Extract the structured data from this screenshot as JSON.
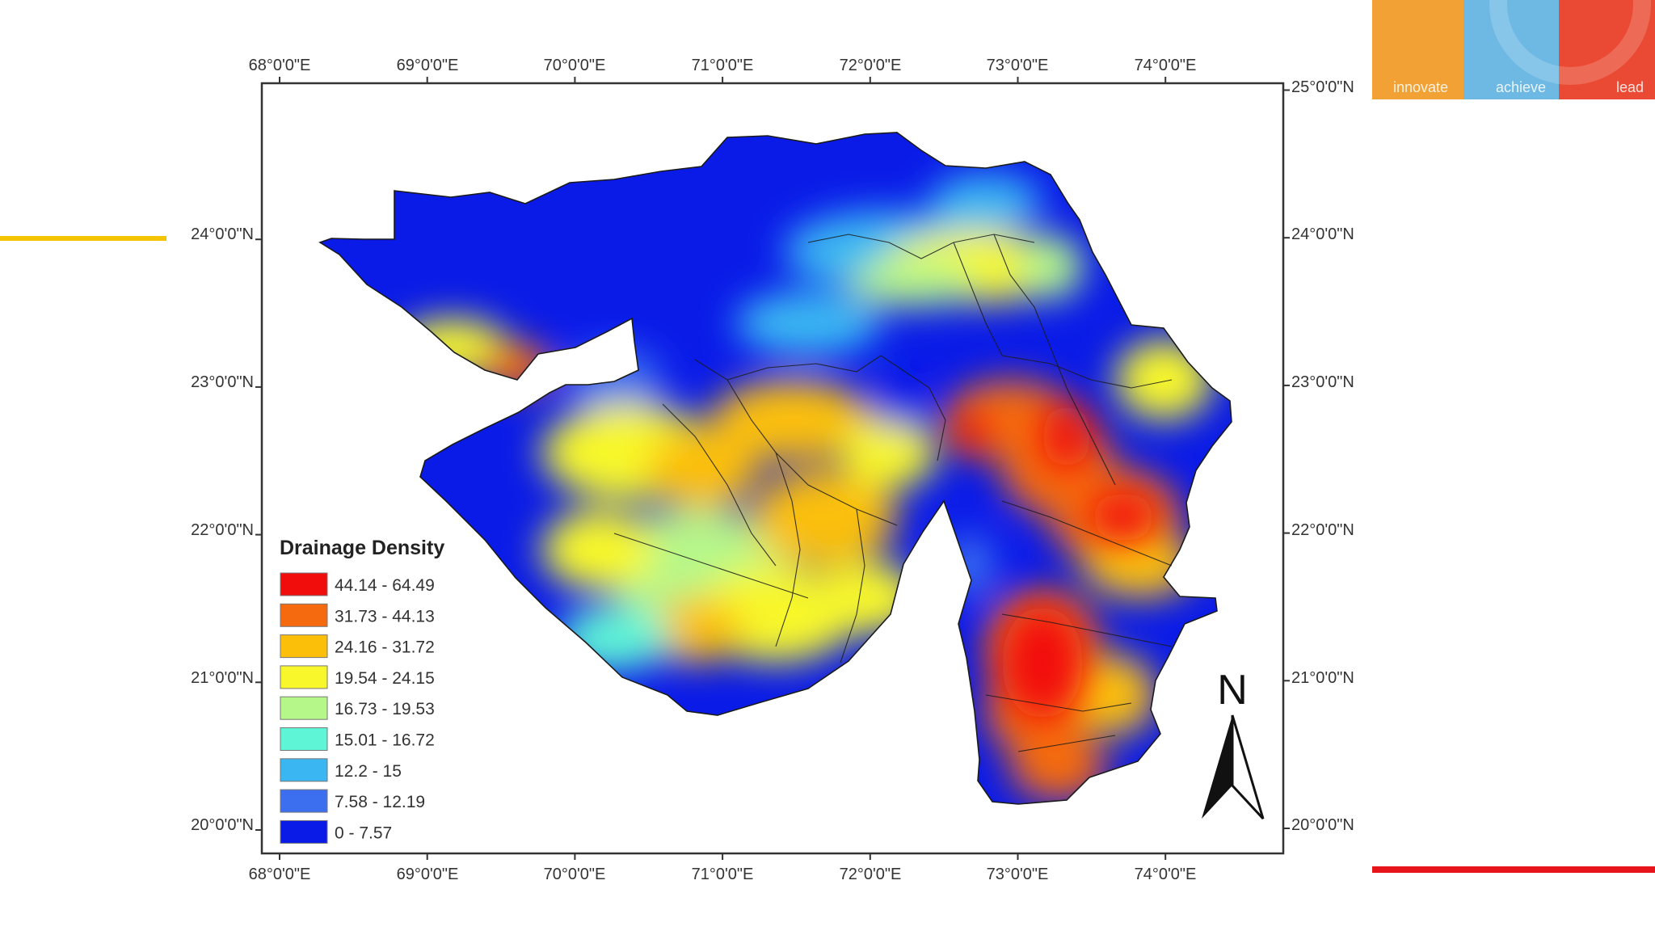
{
  "slide": {
    "brand_words": [
      "innovate",
      "achieve",
      "lead"
    ],
    "colors": {
      "accent_line": "#f5c400",
      "bottom_line": "#e8141b"
    }
  },
  "map": {
    "extent": {
      "lon": [
        67.9,
        74.8
      ],
      "lat": [
        19.8,
        25.0
      ]
    },
    "top_ticks": [
      "68°0'0\"E",
      "69°0'0\"E",
      "70°0'0\"E",
      "71°0'0\"E",
      "72°0'0\"E",
      "73°0'0\"E",
      "74°0'0\"E"
    ],
    "bottom_ticks": [
      "68°0'0\"E",
      "69°0'0\"E",
      "70°0'0\"E",
      "71°0'0\"E",
      "72°0'0\"E",
      "73°0'0\"E",
      "74°0'0\"E"
    ],
    "left_ticks": [
      "24°0'0\"N",
      "23°0'0\"N",
      "22°0'0\"N",
      "21°0'0\"N",
      "20°0'0\"N"
    ],
    "right_ticks": [
      "25°0'0\"N",
      "24°0'0\"N",
      "23°0'0\"N",
      "22°0'0\"N",
      "21°0'0\"N",
      "20°0'0\"N"
    ],
    "tick_lon_values": [
      68,
      69,
      70,
      71,
      72,
      73,
      74
    ],
    "left_lat_values": [
      24,
      23,
      22,
      21,
      20
    ],
    "right_lat_values": [
      25,
      24,
      23,
      22,
      21,
      20
    ],
    "north_arrow": "N",
    "legend": {
      "title": "Drainage Density",
      "classes": [
        {
          "label": "44.14 - 64.49",
          "color": "#f20d0d"
        },
        {
          "label": "31.73 - 44.13",
          "color": "#f56a0f"
        },
        {
          "label": "24.16 - 31.72",
          "color": "#fbbf0a"
        },
        {
          "label": "19.54 - 24.15",
          "color": "#f7f72b"
        },
        {
          "label": "16.73 - 19.53",
          "color": "#b6f78a"
        },
        {
          "label": "15.01 - 16.72",
          "color": "#5ef5d6"
        },
        {
          "label": "12.2 - 15",
          "color": "#3ab7f2"
        },
        {
          "label": "7.58 - 12.19",
          "color": "#3b6ff0"
        },
        {
          "label": "0 - 7.57",
          "color": "#0a1be8"
        }
      ]
    }
  }
}
